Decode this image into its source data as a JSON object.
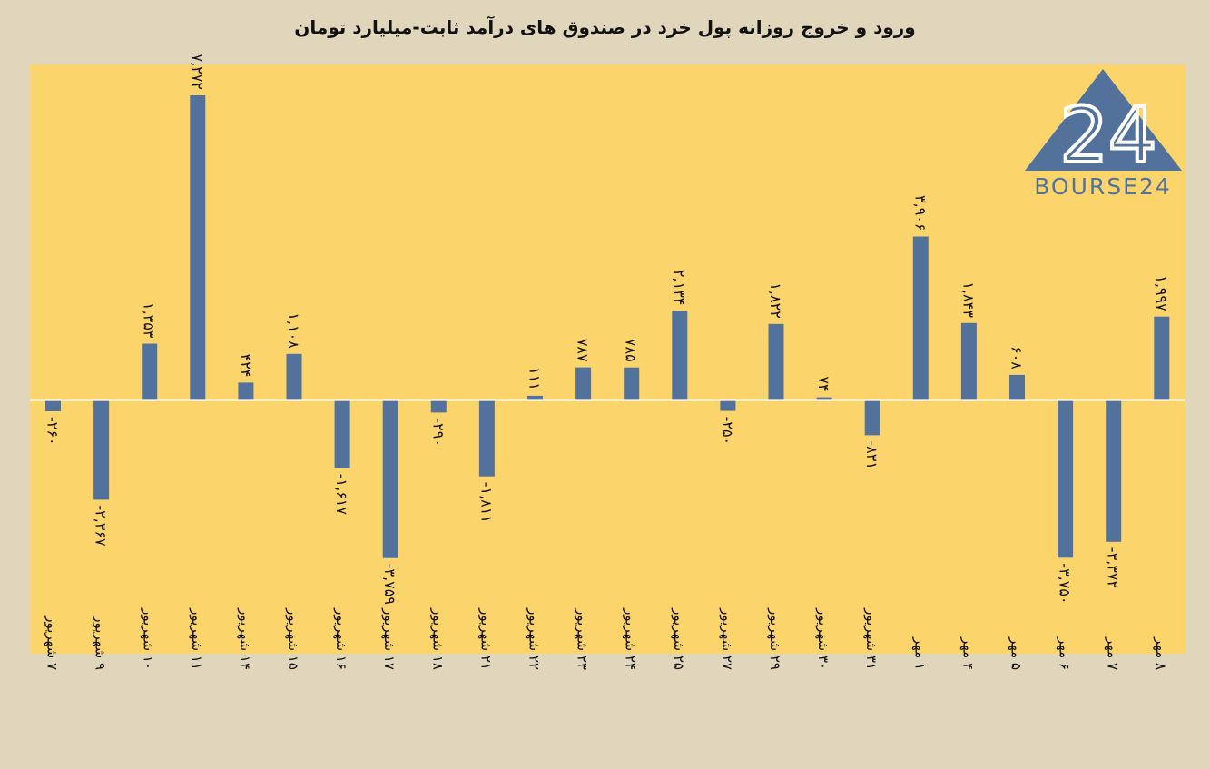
{
  "chart_data": {
    "type": "bar",
    "title": "ورود و خروج روزانه پول خرد در صندوق های درآمد ثابت-میلیارد تومان",
    "categories": [
      "7 شهریور",
      "9 شهریور",
      "10 شهریور",
      "11 شهریور",
      "14 شهریور",
      "15 شهریور",
      "16 شهریور",
      "17 شهریور",
      "18 شهریور",
      "21 شهریور",
      "22 شهریور",
      "23 شهریور",
      "24 شهریور",
      "25 شهریور",
      "27 شهریور",
      "29 شهریور",
      "30 شهریور",
      "31 شهریور",
      "1 مهر",
      "4 مهر",
      "5 مهر",
      "6 مهر",
      "7 مهر",
      "8 مهر"
    ],
    "values": [
      -260,
      -2367,
      1353,
      7272,
      424,
      1108,
      -1617,
      -3759,
      -290,
      -1811,
      111,
      787,
      785,
      2134,
      -250,
      1822,
      74,
      -831,
      3906,
      1843,
      608,
      -3750,
      -3372,
      1997
    ],
    "data_labels": [
      "-۲۶۰",
      "-۲,۳۶۷",
      "۱,۳۵۳",
      "۷,۲۷۲",
      "۴۲۴",
      "۱,۱۰۸",
      "-۱,۶۱۷",
      "-۳,۷۵۹",
      "-۲۹۰",
      "-۱,۸۱۱",
      "۱۱۱",
      "۷۸۷",
      "۷۸۵",
      "۲,۱۳۴",
      "-۲۵۰",
      "۱,۸۲۲",
      "۷۴",
      "-۸۳۱",
      "۳,۹۰۶",
      "۱,۸۴۳",
      "۶۰۸",
      "-۳,۷۵۰",
      "-۳,۳۷۲",
      "۱,۹۹۷"
    ],
    "category_labels": [
      "۷ شهریور",
      "۹ شهریور",
      "۱۰ شهریور",
      "۱۱ شهریور",
      "۱۴ شهریور",
      "۱۵ شهریور",
      "۱۶ شهریور",
      "۱۷ شهریور",
      "۱۸ شهریور",
      "۲۱ شهریور",
      "۲۲ شهریور",
      "۲۳ شهریور",
      "۲۴ شهریور",
      "۲۵ شهریور",
      "۲۷ شهریور",
      "۲۹ شهریور",
      "۳۰ شهریور",
      "۳۱ شهریور",
      "۱ مهر",
      "۴ مهر",
      "۵ مهر",
      "۶ مهر",
      "۷ مهر",
      "۸ مهر"
    ],
    "xlabel": "",
    "ylabel": "",
    "ylim": [
      -6000,
      8000
    ],
    "grid": false,
    "legend": "none",
    "bar_color": "#52729c",
    "plot_background": "#fcd46c",
    "page_background": "#e0d6bc"
  },
  "logo": {
    "text": "BOURSE24",
    "numeral": "24",
    "color": "#52729c"
  }
}
